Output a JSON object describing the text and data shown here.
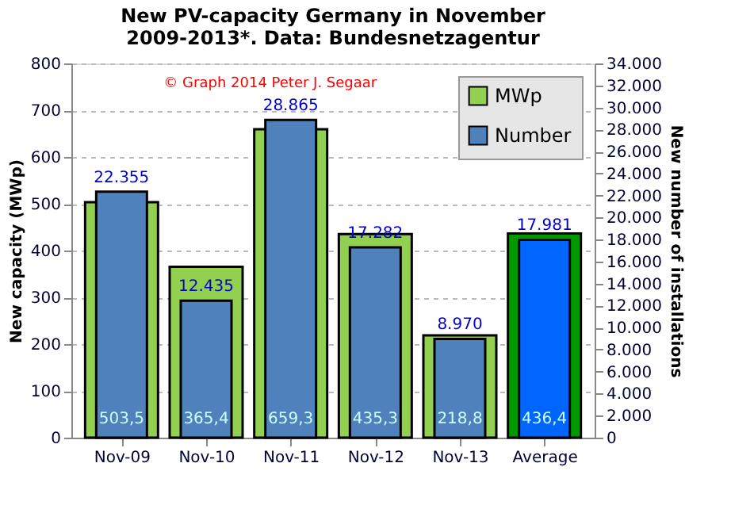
{
  "chart_data": {
    "type": "bar",
    "title": "New PV-capacity Germany in November 2009-2013*. Data: Bundesnetzagentur",
    "subtitle": "© Graph 2014 Peter J. Segaar",
    "ylabel": "New capacity (MWp)",
    "y2label": "New number of installations",
    "categories": [
      "Nov-09",
      "Nov-10",
      "Nov-11",
      "Nov-12",
      "Nov-13",
      "Average"
    ],
    "series": [
      {
        "name": "MWp",
        "color": "#92d050",
        "colors": [
          "#92d050",
          "#92d050",
          "#92d050",
          "#92d050",
          "#92d050",
          "#009900"
        ],
        "values": [
          503.5,
          365.4,
          659.3,
          435.3,
          218.8,
          436.4
        ],
        "value_labels": [
          "503,5",
          "365,4",
          "659,3",
          "435,3",
          "218,8",
          "436,4"
        ]
      },
      {
        "name": "Number",
        "color": "#4f81bd",
        "colors": [
          "#4f81bd",
          "#4f81bd",
          "#4f81bd",
          "#4f81bd",
          "#4f81bd",
          "#0066ff"
        ],
        "axis": "y2",
        "values": [
          22355,
          12435,
          28865,
          17282,
          8970,
          17981
        ],
        "value_labels": [
          "22.355",
          "12.435",
          "28.865",
          "17.282",
          "8.970",
          "17.981"
        ]
      }
    ],
    "ylim": [
      0,
      800
    ],
    "yticks": [
      0,
      100,
      200,
      300,
      400,
      500,
      600,
      700,
      800
    ],
    "y2lim": [
      0,
      34000
    ],
    "y2ticks": [
      0,
      {
        "value": 2000,
        "label": "2.000"
      },
      {
        "value": 4000,
        "label": "4.000"
      },
      {
        "value": 6000,
        "label": "6.000"
      },
      {
        "value": 8000,
        "label": "8.000"
      },
      {
        "value": 10000,
        "label": "10.000"
      },
      {
        "value": 12000,
        "label": "12.000"
      },
      {
        "value": 14000,
        "label": "14.000"
      },
      {
        "value": 16000,
        "label": "16.000"
      },
      {
        "value": 18000,
        "label": "18.000"
      },
      {
        "value": 20000,
        "label": "20.000"
      },
      {
        "value": 22000,
        "label": "22.000"
      },
      {
        "value": 24000,
        "label": "24.000"
      },
      {
        "value": 26000,
        "label": "26.000"
      },
      {
        "value": 28000,
        "label": "28.000"
      },
      {
        "value": 30000,
        "label": "30.000"
      },
      {
        "value": 32000,
        "label": "32.000"
      },
      {
        "value": 34000,
        "label": "34.000"
      }
    ],
    "grid": "y",
    "legend": "top right"
  }
}
